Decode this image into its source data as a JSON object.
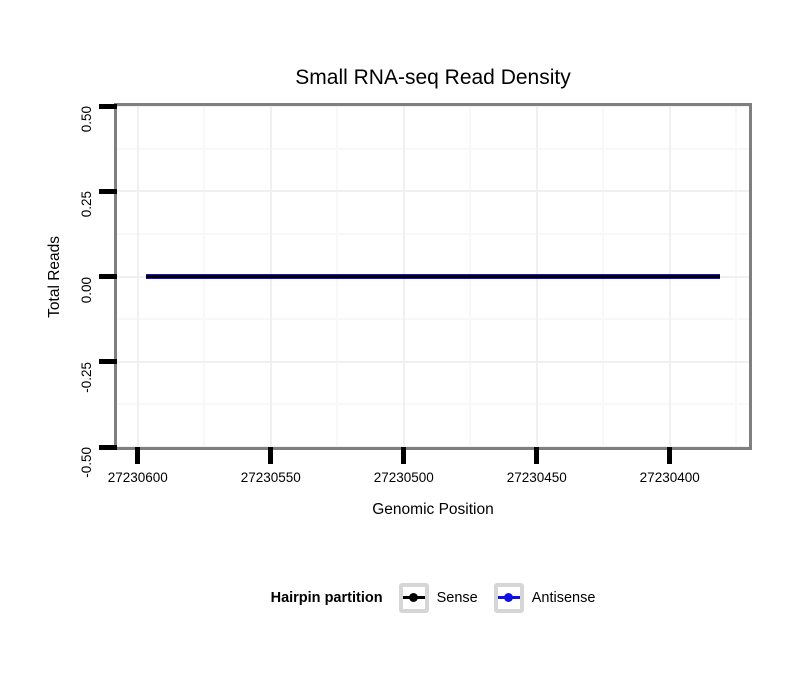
{
  "figure": {
    "title": "Small RNA-seq Read Density"
  },
  "axes": {
    "x": {
      "title": "Genomic Position"
    },
    "y": {
      "title": "Total Reads"
    }
  },
  "legend": {
    "title": "Hairpin partition",
    "items": [
      {
        "label": "Sense",
        "color": "#000000"
      },
      {
        "label": "Antisense",
        "color": "#0f0fe6"
      }
    ]
  },
  "colors": {
    "panel_border": "#7f7f7f",
    "grid_major": "#f0f0f2",
    "grid_minor": "#f8f8f9",
    "tick_mark": "#000000",
    "legend_key_border": "#d6d6d6",
    "sense": "#000000",
    "antisense": "#0f0fe6"
  },
  "chart_data": {
    "type": "line",
    "title": "Small RNA-seq Read Density",
    "xlabel": "Genomic Position",
    "ylabel": "Total Reads",
    "x_axis_reversed": true,
    "xlim": [
      27230607.8,
      27230370.2
    ],
    "ylim": [
      -0.5,
      0.5
    ],
    "x_ticks": {
      "values": [
        27230600,
        27230550,
        27230500,
        27230450,
        27230400
      ],
      "labels": [
        "27230600",
        "27230550",
        "27230500",
        "27230450",
        "27230400"
      ]
    },
    "y_ticks": {
      "values": [
        0.5,
        0.25,
        0.0,
        -0.25,
        -0.5
      ],
      "labels": [
        "0.50",
        "0.25",
        "0.00",
        "-0.25",
        "-0.50"
      ]
    },
    "grid": {
      "major": true,
      "minor": true
    },
    "legend_title": "Hairpin partition",
    "legend_position": "bottom",
    "series": [
      {
        "name": "Sense",
        "color": "#000000",
        "x": [
          27230597,
          27230381
        ],
        "y": [
          0,
          0
        ]
      },
      {
        "name": "Antisense",
        "color": "#0f0fe6",
        "x": [
          27230597,
          27230381
        ],
        "y": [
          0,
          0
        ]
      }
    ]
  }
}
